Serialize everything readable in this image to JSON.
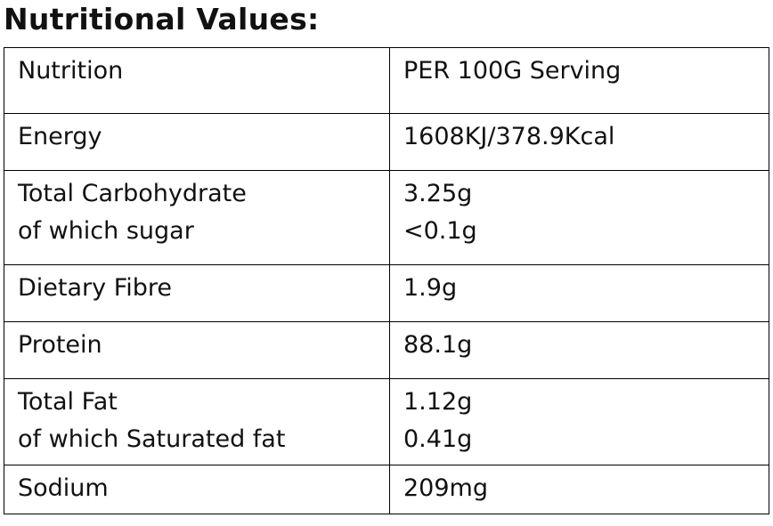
{
  "title": "Nutritional Values:",
  "table": {
    "header": [
      "Nutrition",
      "PER 100G Serving"
    ],
    "rows": [
      [
        [
          "Energy"
        ],
        [
          "1608KJ/378.9Kcal"
        ]
      ],
      [
        [
          "Total Carbohydrate",
          "of which sugar"
        ],
        [
          "3.25g",
          "<0.1g"
        ]
      ],
      [
        [
          "Dietary Fibre"
        ],
        [
          "1.9g"
        ]
      ],
      [
        [
          "Protein"
        ],
        [
          "88.1g"
        ]
      ],
      [
        [
          "Total Fat",
          "of which Saturated fat"
        ],
        [
          "1.12g",
          "0.41g"
        ]
      ],
      [
        [
          "Sodium"
        ],
        [
          "209mg"
        ]
      ]
    ]
  }
}
